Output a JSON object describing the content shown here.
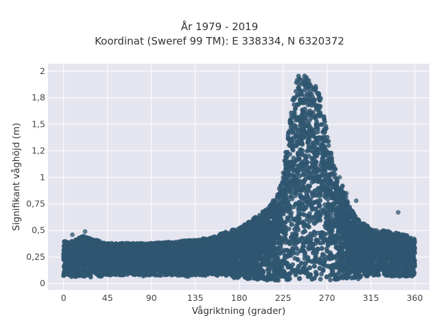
{
  "chart_data": {
    "type": "scatter",
    "title": "År 1979 - 2019",
    "subtitle": "Koordinat (Sweref 99 TM): E 338334, N 6320372",
    "xlabel": "Vågriktning (grader)",
    "ylabel": "Signifikant våghöjd (m)",
    "xlim": [
      -16,
      375
    ],
    "ylim": [
      -0.06,
      2.07
    ],
    "xticks": [
      0,
      45,
      90,
      135,
      180,
      225,
      270,
      315,
      360
    ],
    "xtick_labels": [
      "0",
      "45",
      "90",
      "135",
      "180",
      "225",
      "270",
      "315",
      "360"
    ],
    "yticks": [
      0,
      0.25,
      0.5,
      0.75,
      1,
      1.25,
      1.5,
      1.75,
      2
    ],
    "ytick_labels": [
      "0",
      "0,25",
      "0,5",
      "0,75",
      "1",
      "1,2",
      "1,5",
      "1,8",
      "2"
    ],
    "grid": true,
    "background": "#e5e5ef",
    "marker_color": "#2f5670",
    "envelope": {
      "x": [
        0,
        10,
        20,
        45,
        90,
        120,
        150,
        170,
        180,
        190,
        200,
        210,
        220,
        225,
        230,
        235,
        240,
        245,
        250,
        255,
        260,
        265,
        270,
        275,
        280,
        285,
        290,
        295,
        300,
        310,
        320,
        330,
        340,
        350,
        360
      ],
      "ymax": [
        0.4,
        0.4,
        0.45,
        0.38,
        0.38,
        0.4,
        0.43,
        0.5,
        0.52,
        0.58,
        0.65,
        0.72,
        0.85,
        1.05,
        1.4,
        1.8,
        1.95,
        1.98,
        1.95,
        1.9,
        1.85,
        1.7,
        1.45,
        1.2,
        1.05,
        0.95,
        0.8,
        0.7,
        0.62,
        0.55,
        0.5,
        0.5,
        0.48,
        0.46,
        0.42
      ],
      "ymin": [
        0.05,
        0.05,
        0.05,
        0.06,
        0.06,
        0.06,
        0.06,
        0.05,
        0.03,
        0.02,
        0.01,
        0.01,
        0.01,
        0.01,
        0.01,
        0.01,
        0.01,
        0.01,
        0.01,
        0.01,
        0.01,
        0.01,
        0.01,
        0.01,
        0.01,
        0.02,
        0.03,
        0.03,
        0.04,
        0.04,
        0.05,
        0.05,
        0.05,
        0.05,
        0.05
      ]
    },
    "outliers": [
      {
        "x": 22,
        "y": 0.49
      },
      {
        "x": 9,
        "y": 0.46
      },
      {
        "x": 283,
        "y": 1.0
      },
      {
        "x": 343,
        "y": 0.67
      },
      {
        "x": 300,
        "y": 0.78
      },
      {
        "x": 290,
        "y": 0.85
      }
    ]
  }
}
